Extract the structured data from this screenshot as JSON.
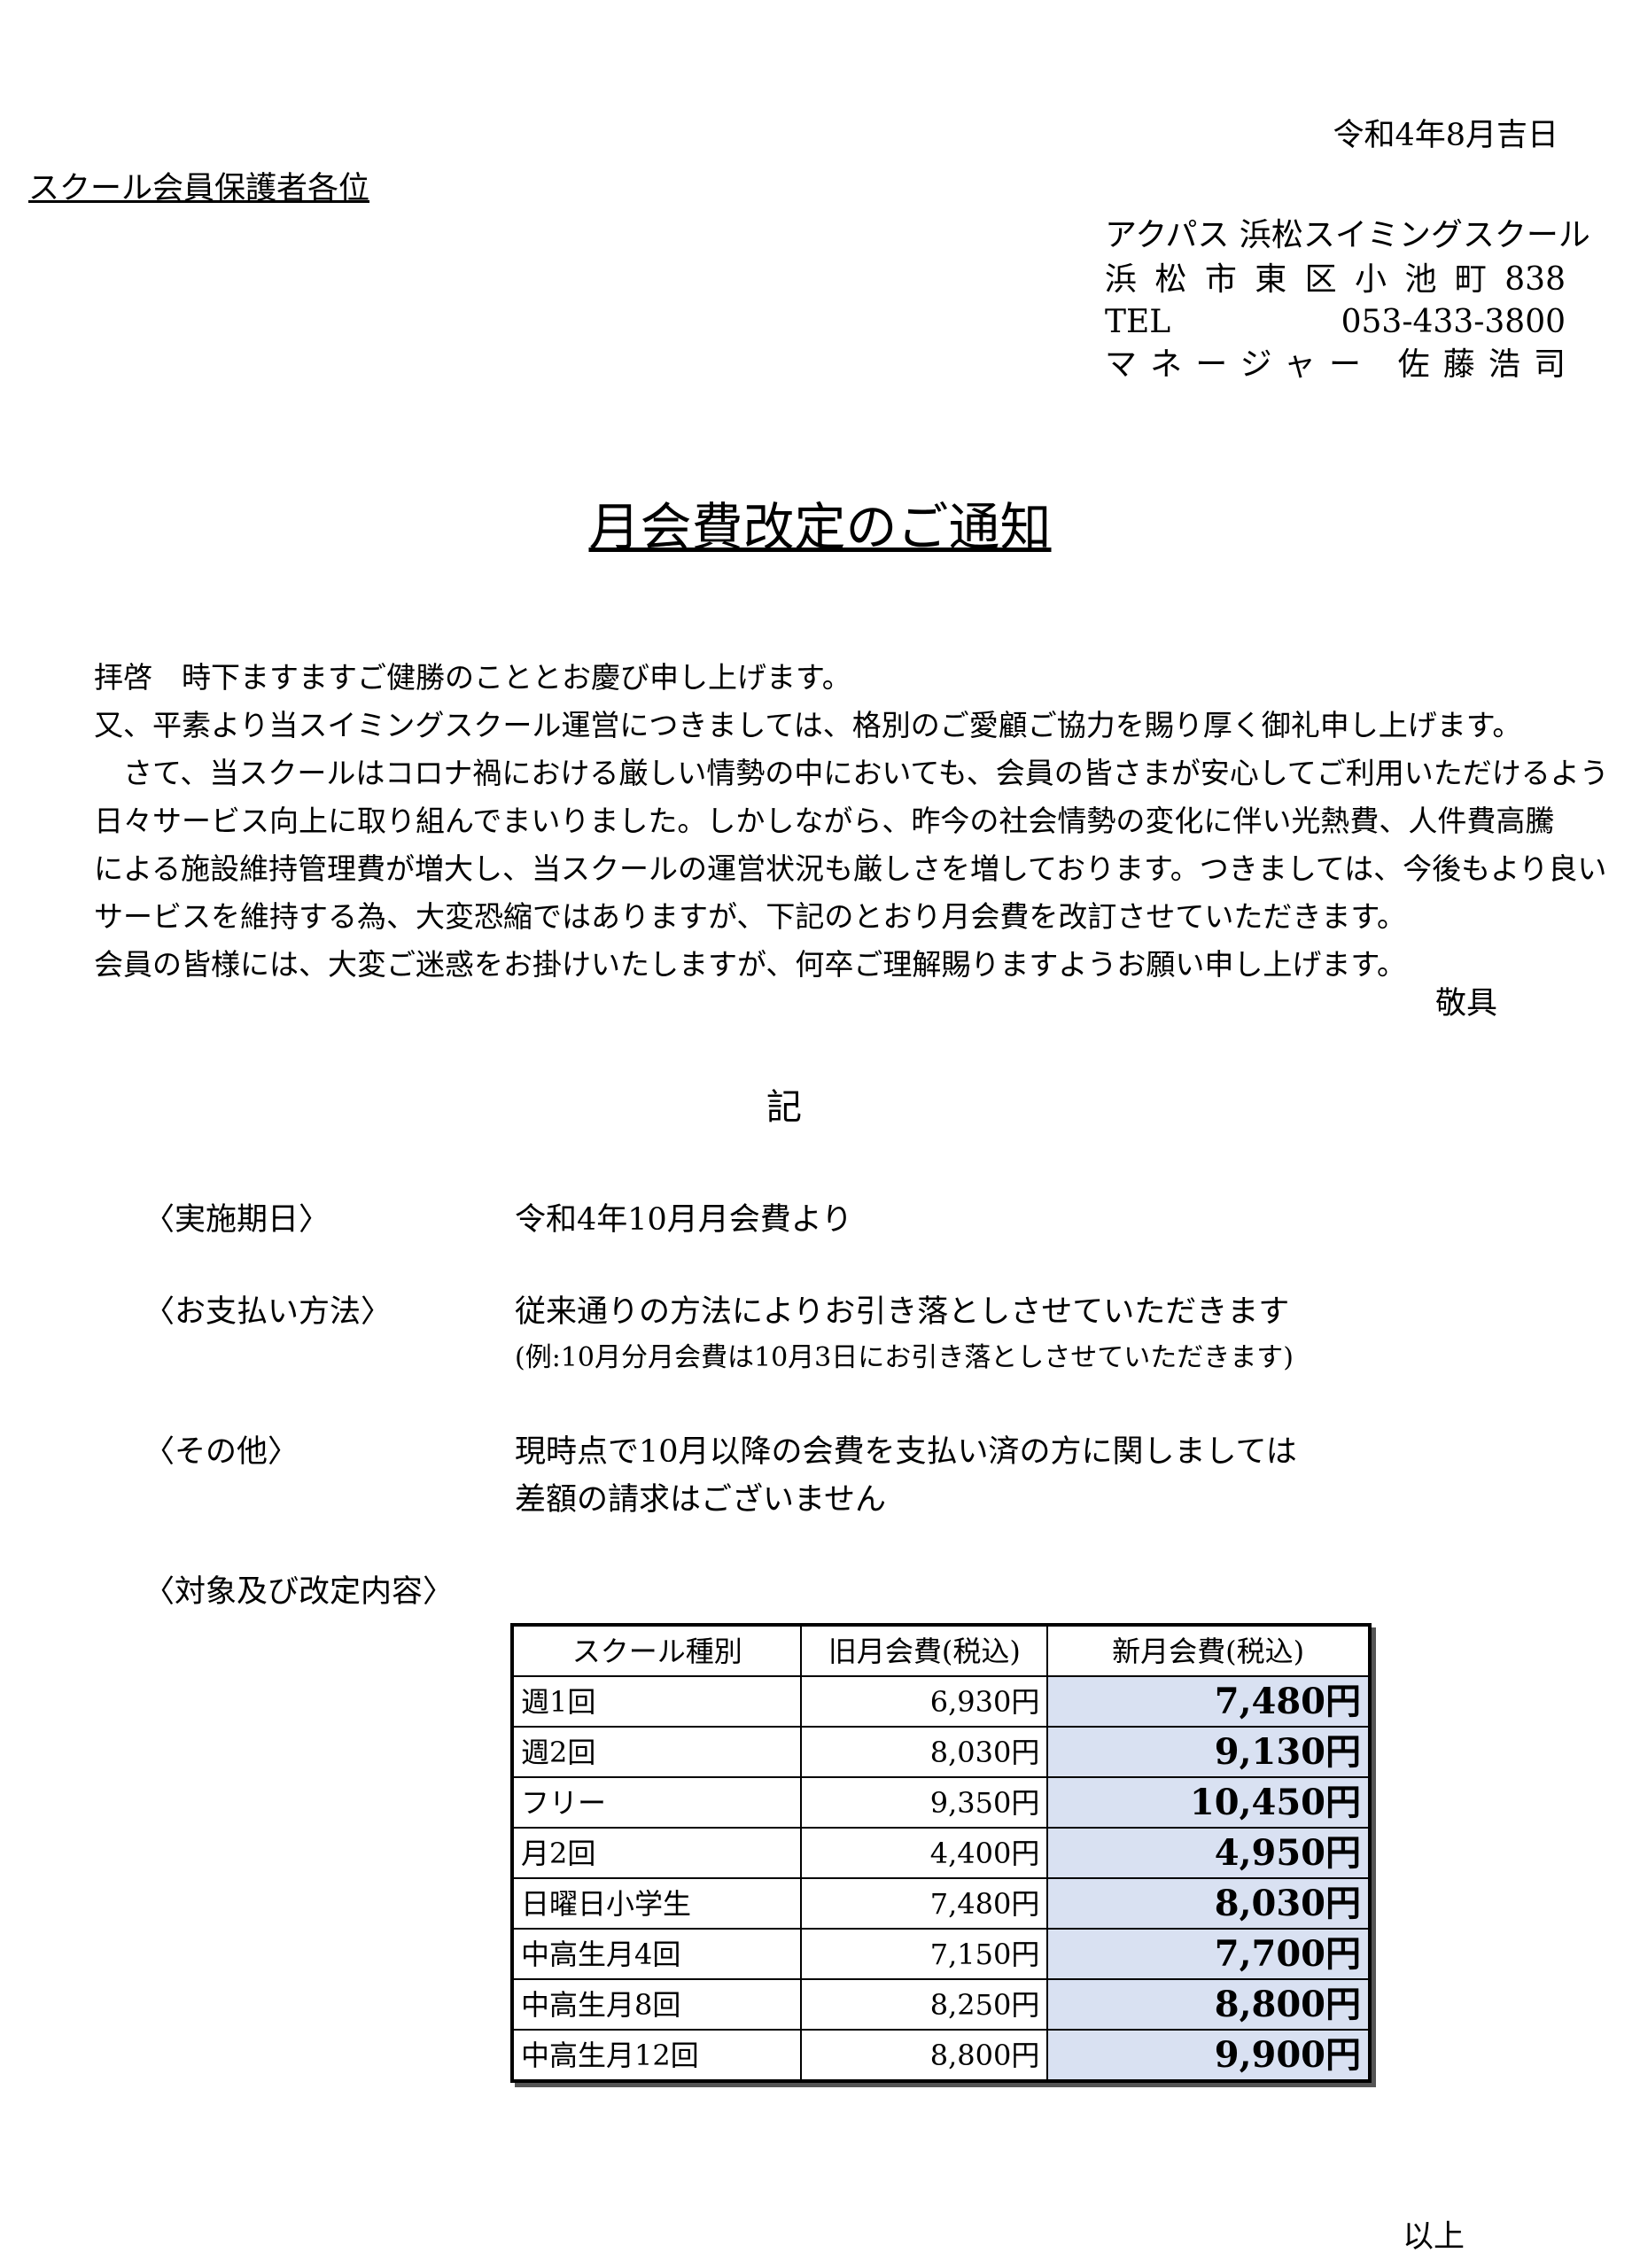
{
  "header": {
    "date": "令和4年8月吉日",
    "recipient": "スクール会員保護者各位",
    "sender": [
      "アクパス 浜松スイミングスクール",
      "浜松市東区小池町838",
      "TEL 053-433-3800",
      "マネージャー 佐藤浩司"
    ]
  },
  "title": "月会費改定のご通知",
  "body": [
    "拝啓　時下ますますご健勝のこととお慶び申し上げます。",
    "又、平素より当スイミングスクール運営につきましては、格別のご愛顧ご協力を賜り厚く御礼申し上げます。",
    "　さて、当スクールはコロナ禍における厳しい情勢の中においても、会員の皆さまが安心してご利用いただけるよう",
    "日々サービス向上に取り組んでまいりました。しかしながら、昨今の社会情勢の変化に伴い光熱費、人件費高騰",
    "による施設維持管理費が増大し、当スクールの運営状況も厳しさを増しております。つきましては、今後もより良い",
    "サービスを維持する為、大変恐縮ではありますが、下記のとおり月会費を改訂させていただきます。",
    "会員の皆様には、大変ご迷惑をお掛けいたしますが、何卒ご理解賜りますようお願い申し上げます。"
  ],
  "closing": "敬具",
  "ki": "記",
  "items": [
    {
      "label": "〈実施期日〉",
      "lines": [
        "令和4年10月月会費より"
      ]
    },
    {
      "label": "〈お支払い方法〉",
      "lines": [
        "従来通りの方法によりお引き落としさせていただきます",
        "(例:10月分月会費は10月3日にお引き落としさせていただきます)"
      ]
    },
    {
      "label": "〈その他〉",
      "lines": [
        "現時点で10月以降の会費を支払い済の方に関しましては",
        "差額の請求はございません"
      ]
    },
    {
      "label": "〈対象及び改定内容〉",
      "lines": []
    }
  ],
  "table": {
    "headers": [
      "スクール種別",
      "旧月会費(税込)",
      "新月会費(税込)"
    ],
    "rows": [
      [
        "週1回",
        "6,930円",
        "7,480円"
      ],
      [
        "週2回",
        "8,030円",
        "9,130円"
      ],
      [
        "フリー",
        "9,350円",
        "10,450円"
      ],
      [
        "月2回",
        "4,400円",
        "4,950円"
      ],
      [
        "日曜日小学生",
        "7,480円",
        "8,030円"
      ],
      [
        "中高生月4回",
        "7,150円",
        "7,700円"
      ],
      [
        "中高生月8回",
        "8,250円",
        "8,800円"
      ],
      [
        "中高生月12回",
        "8,800円",
        "9,900円"
      ]
    ]
  },
  "end": "以上"
}
